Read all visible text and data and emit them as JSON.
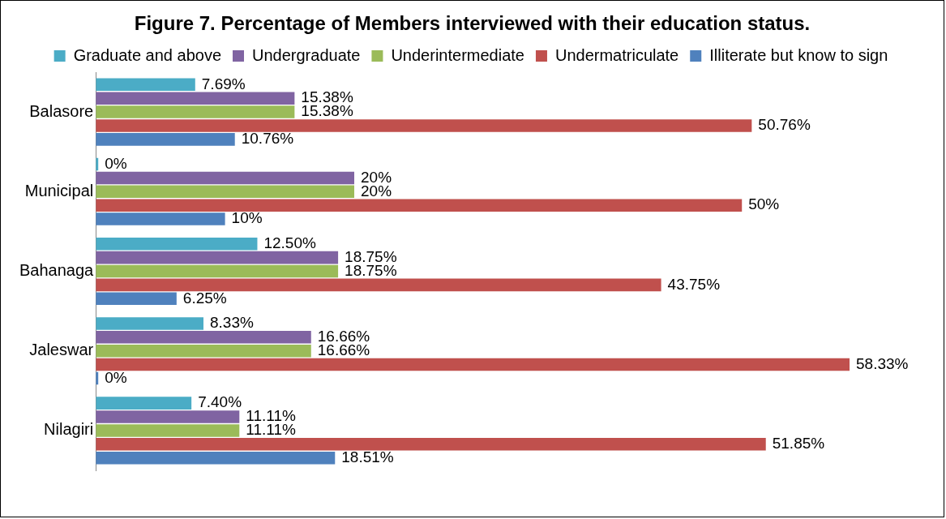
{
  "chart_data": {
    "type": "bar",
    "orientation": "horizontal",
    "title": "Figure 7. Percentage of Members interviewed  with their education status.",
    "categories": [
      "Balasore",
      "Municipal",
      "Bahanaga",
      "Jaleswar",
      "Nilagiri"
    ],
    "grid": false,
    "legend": "top",
    "series": [
      {
        "name": "Graduate and above",
        "color": "#4bacc6",
        "values": [
          7.69,
          0,
          12.5,
          8.33,
          7.4
        ],
        "value_labels": [
          "7.69%",
          "0%",
          "12.50%",
          "8.33%",
          "7.40%"
        ]
      },
      {
        "name": "Undergraduate",
        "color": "#8064a2",
        "values": [
          15.38,
          20,
          18.75,
          16.66,
          11.11
        ],
        "value_labels": [
          "15.38%",
          "20%",
          "18.75%",
          "16.66%",
          "11.11%"
        ]
      },
      {
        "name": "Underintermediate",
        "color": "#9bbb59",
        "values": [
          15.38,
          20,
          18.75,
          16.66,
          11.11
        ],
        "value_labels": [
          "15.38%",
          "20%",
          "18.75%",
          "16.66%",
          "11.11%"
        ]
      },
      {
        "name": "Undermatriculate",
        "color": "#c0504d",
        "values": [
          50.76,
          50,
          43.75,
          58.33,
          51.85
        ],
        "value_labels": [
          "50.76%",
          "50%",
          "43.75%",
          "58.33%",
          "51.85%"
        ]
      },
      {
        "name": "Illiterate but know to sign",
        "color": "#4f81bd",
        "values": [
          10.76,
          10,
          6.25,
          0,
          18.51
        ],
        "value_labels": [
          "10.76%",
          "10%",
          "6.25%",
          "0%",
          "18.51%"
        ]
      }
    ]
  }
}
